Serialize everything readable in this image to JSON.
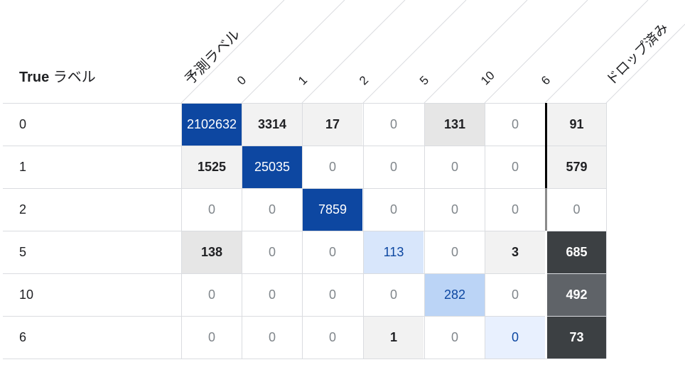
{
  "chart_data": {
    "type": "heatmap",
    "title": "",
    "row_axis_label_bold": "True",
    "row_axis_label_rest": " ラベル",
    "col_axis_label": "予測ラベル",
    "dropped_label": "ドロップ済み",
    "rows": [
      "0",
      "1",
      "2",
      "5",
      "10",
      "6"
    ],
    "columns": [
      "0",
      "1",
      "2",
      "5",
      "10",
      "6"
    ],
    "values": [
      [
        2102632,
        3314,
        17,
        0,
        131,
        0
      ],
      [
        1525,
        25035,
        0,
        0,
        0,
        0
      ],
      [
        0,
        0,
        7859,
        0,
        0,
        0
      ],
      [
        138,
        0,
        0,
        113,
        0,
        3
      ],
      [
        0,
        0,
        0,
        0,
        282,
        0
      ],
      [
        0,
        0,
        0,
        1,
        0,
        0
      ]
    ],
    "dropped": [
      91,
      579,
      0,
      685,
      492,
      73
    ],
    "colors": {
      "diag_strong": "#0d47a1",
      "diag_medium": "#bbd4f6",
      "diag_light": "#d8e6fb",
      "diag_faint": "#e8f0fe",
      "offdiag_mid": "#e6e6e6",
      "offdiag_light": "#f2f2f2",
      "dropped_dark": "#3c4043",
      "dropped_mid": "#5f6368",
      "dropped_light": "#f2f2f2",
      "separator": "#000000",
      "separator_faded": "#8a8a8a"
    }
  }
}
